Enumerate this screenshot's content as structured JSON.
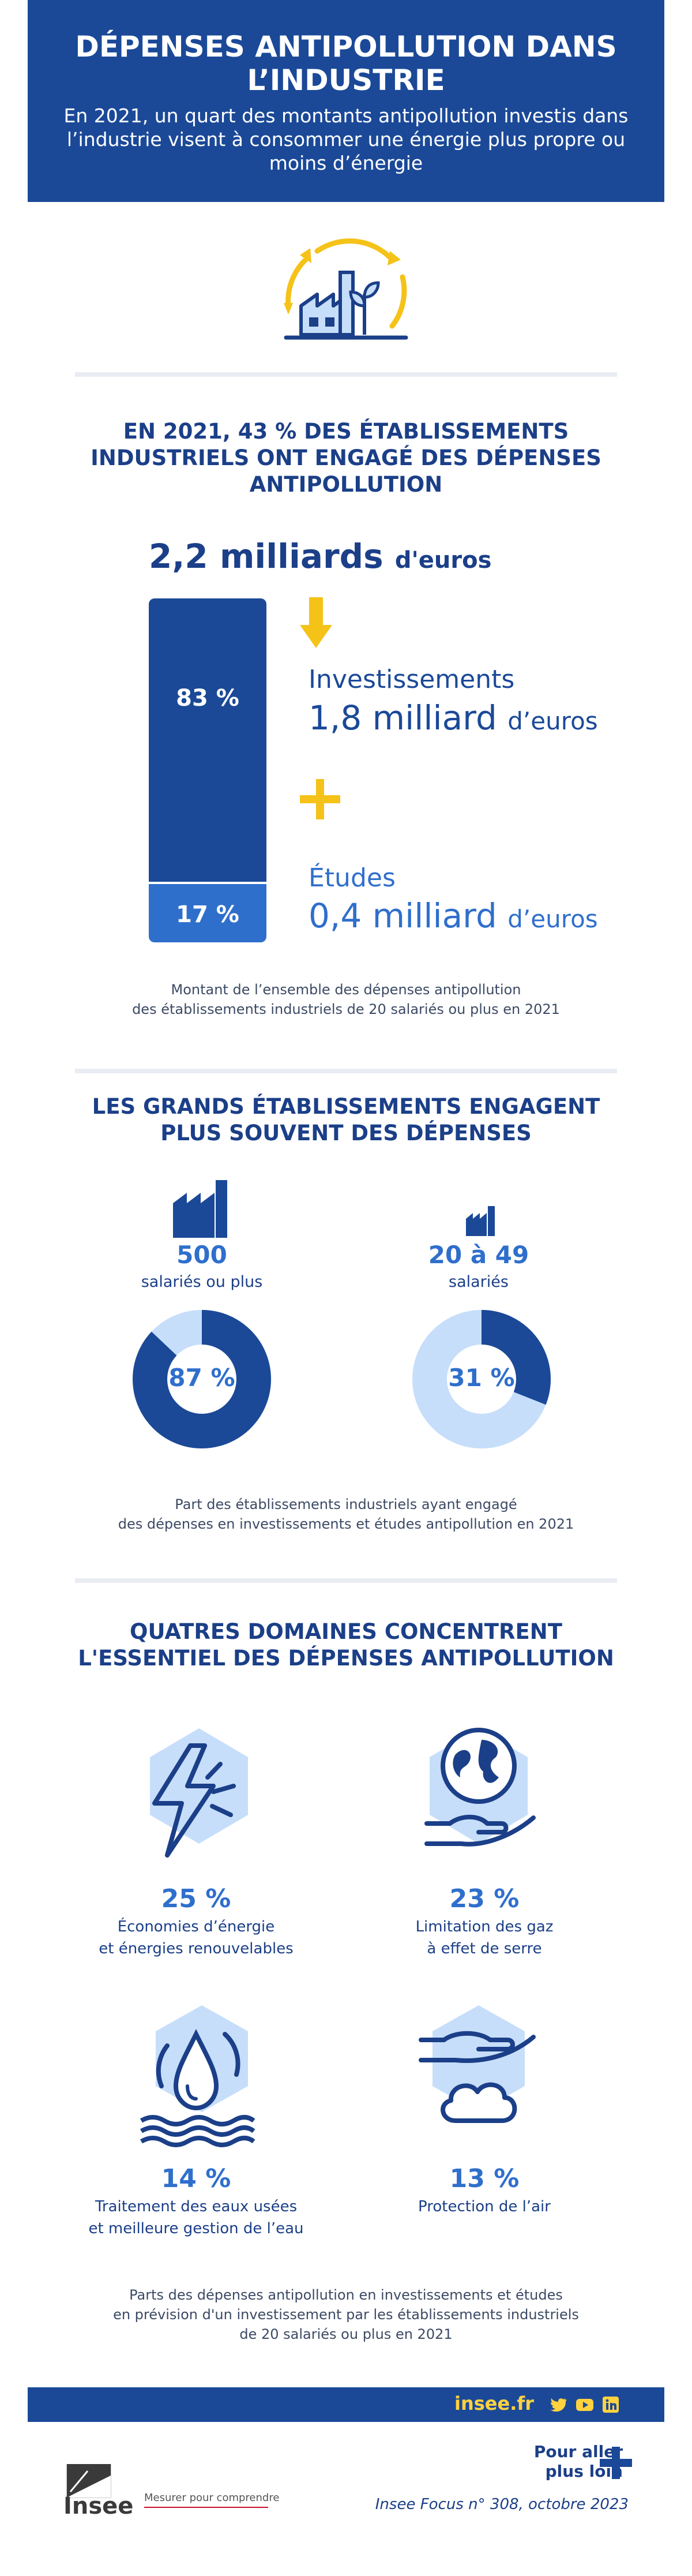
{
  "header": {
    "title": "DÉPENSES ANTIPOLLUTION DANS L’INDUSTRIE",
    "subtitle": "En 2021, un quart des montants antipollution investis dans l’industrie visent à consommer une énergie plus propre ou moins d’énergie"
  },
  "section1": {
    "title": "EN 2021, 43 % DES ÉTABLISSEMENTS INDUSTRIELS ONT ENGAGÉ DES DÉPENSES ANTIPOLLUTION",
    "total_value": "2,2 milliards",
    "total_unit": "d'euros",
    "share_investment": 83,
    "share_studies": 17,
    "investment_pct": "83 %",
    "studies_pct": "17 %",
    "investment_name": "Investissements",
    "investment_value": "1,8 milliard",
    "investment_unit": "d’euros",
    "studies_name": "Études",
    "studies_value": "0,4 milliard",
    "studies_unit": "d’euros",
    "caption_line1": "Montant de l’ensemble des dépenses antipollution",
    "caption_line2": "des établissements industriels de 20 salariés ou plus en 2021"
  },
  "section2": {
    "title": "LES GRANDS ÉTABLISSEMENTS ENGAGENT PLUS SOUVENT DES DÉPENSES",
    "large": {
      "size": "500",
      "size_label": "salariés ou plus",
      "share": 87,
      "pct_label": "87 %"
    },
    "small": {
      "size": "20 à 49",
      "size_label": "salariés",
      "share": 31,
      "pct_label": "31 %"
    },
    "caption_line1": "Part des établissements industriels ayant engagé",
    "caption_line2": "des dépenses en investissements et études antipollution en 2021"
  },
  "section3": {
    "title": "QUATRES DOMAINES CONCENTRENT L'ESSENTIEL DES DÉPENSES ANTIPOLLUTION",
    "domains": [
      {
        "pct": "25 %",
        "label_line1": "Économies d’énergie",
        "label_line2": "et énergies renouvelables",
        "icon": "lightning-icon"
      },
      {
        "pct": "23 %",
        "label_line1": "Limitation des gaz",
        "label_line2": "à effet de serre",
        "icon": "globe-hand-icon"
      },
      {
        "pct": "14 %",
        "label_line1": "Traitement des eaux usées",
        "label_line2": "et meilleure gestion de l’eau",
        "icon": "water-drop-icon"
      },
      {
        "pct": "13 %",
        "label_line1": "Protection de l’air",
        "label_line2": "",
        "icon": "cloud-hand-icon"
      }
    ],
    "caption_line1": "Parts des dépenses antipollution en investissements et études",
    "caption_line2": "en prévision d'un investissement par les établissements industriels",
    "caption_line3": "de 20 salariés ou plus en 2021"
  },
  "footer": {
    "site": "insee.fr",
    "more_line1": "Pour aller",
    "more_line2": "plus loin",
    "reference": "Insee Focus n° 308, octobre 2023",
    "brand": "Insee",
    "tagline": "Mesurer pour comprendre"
  },
  "colors": {
    "navy": "#1b4998",
    "blue": "#2f6fcc",
    "light_blue": "#c6defa",
    "yellow": "#f5c218"
  }
}
